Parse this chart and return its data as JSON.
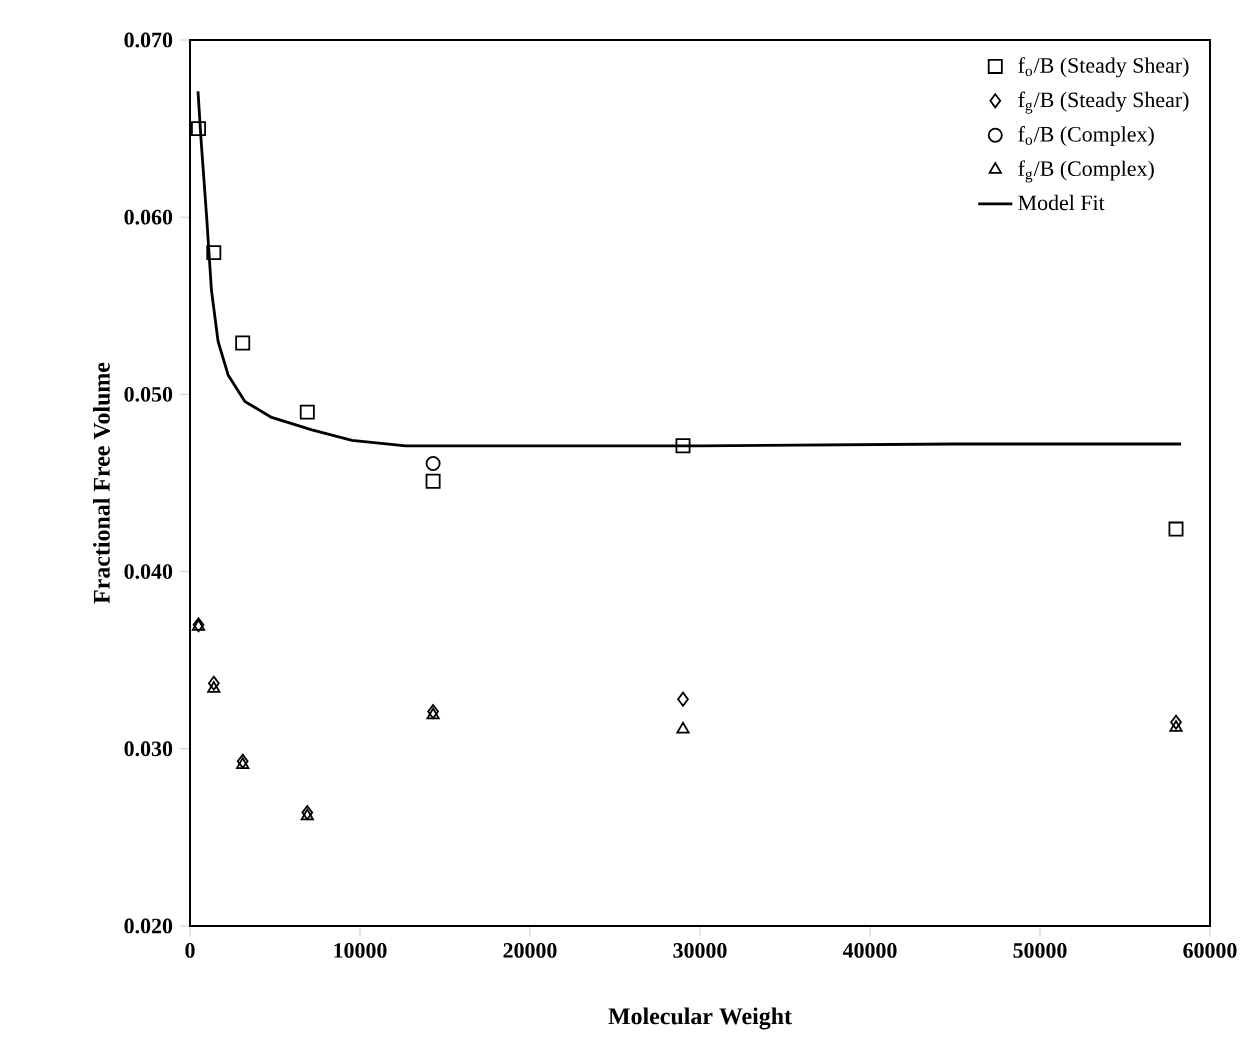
{
  "chart_data": {
    "type": "scatter",
    "xlabel": "Molecular Weight",
    "ylabel": "Fractional Free Volume",
    "xlim": [
      0,
      60000
    ],
    "ylim": [
      0.02,
      0.07
    ],
    "xticks": [
      0,
      10000,
      20000,
      30000,
      40000,
      50000,
      60000
    ],
    "yticks": [
      {
        "value": 0.02,
        "label": "0.020"
      },
      {
        "value": 0.03,
        "label": "0.030"
      },
      {
        "value": 0.04,
        "label": "0.040"
      },
      {
        "value": 0.05,
        "label": "0.050"
      },
      {
        "value": 0.06,
        "label": "0.060"
      },
      {
        "value": 0.07,
        "label": "0.070"
      }
    ],
    "x": [
      500,
      1400,
      3100,
      6900,
      14300,
      29000,
      58000
    ],
    "grid": false,
    "legend": "top right",
    "series": [
      {
        "name": "f$_{o}$/B (Steady Shear)",
        "color": "#000000",
        "marker": "square",
        "values": [
          0.065,
          0.058,
          0.0529,
          0.049,
          0.0451,
          0.0471,
          0.0424
        ]
      },
      {
        "name": "f$_{g}$/B (Steady Shear)",
        "color": "#000000",
        "marker": "diamond",
        "values": [
          0.037,
          0.0337,
          0.0293,
          0.0264,
          0.0321,
          0.0328,
          0.0315
        ]
      },
      {
        "name": "f$_{o}$/B (Complex)",
        "color": "#000000",
        "marker": "circle",
        "values": [
          null,
          null,
          null,
          null,
          0.0461,
          null,
          null
        ]
      },
      {
        "name": "f$_{g}$/B (Complex)",
        "color": "#000000",
        "marker": "triangle",
        "values": [
          0.0369,
          0.0334,
          0.0291,
          0.0262,
          0.0319,
          0.0311,
          0.0312
        ]
      },
      {
        "name": "Model Fit",
        "type": "line",
        "color": "#000000",
        "marker": "none",
        "line_style": "solid",
        "x": [
          470,
          670,
          980,
          1260,
          1650,
          2240,
          3230,
          4800,
          7170,
          9530,
          12680,
          19400,
          30000,
          45000,
          58300
        ],
        "values": [
          0.0671,
          0.0641,
          0.06,
          0.0559,
          0.053,
          0.0511,
          0.0496,
          0.0487,
          0.048,
          0.0474,
          0.0471,
          0.0471,
          0.0471,
          0.0472,
          0.0472
        ]
      }
    ]
  }
}
